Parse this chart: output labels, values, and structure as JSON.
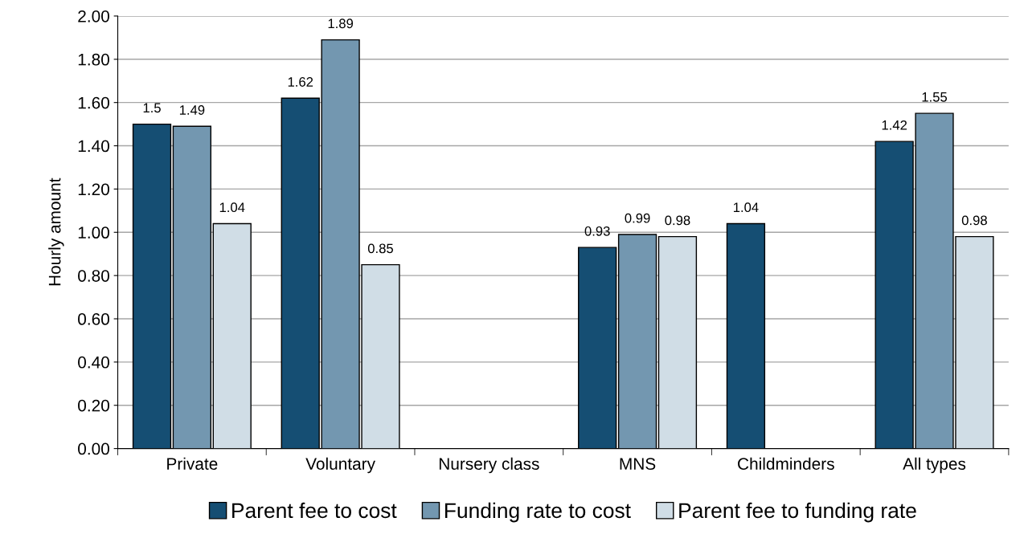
{
  "chart_data": {
    "type": "bar",
    "ylabel": "Hourly amount",
    "categories": [
      "Private",
      "Voluntary",
      "Nursery class",
      "MNS",
      "Childminders",
      "All types"
    ],
    "series": [
      {
        "name": "Parent fee to cost",
        "color": "#154e73",
        "values": [
          1.5,
          1.62,
          null,
          0.93,
          1.04,
          1.42
        ]
      },
      {
        "name": "Funding rate to cost",
        "color": "#7397b0",
        "values": [
          1.49,
          1.89,
          null,
          0.99,
          null,
          1.55
        ]
      },
      {
        "name": "Parent fee to funding rate",
        "color": "#d0dde6",
        "values": [
          1.04,
          0.85,
          null,
          0.98,
          null,
          0.98
        ]
      }
    ],
    "ylim": [
      0,
      2
    ],
    "yticks": [
      {
        "value": 0,
        "label": "0.00"
      },
      {
        "value": 0.2,
        "label": "0.20"
      },
      {
        "value": 0.4,
        "label": "0.40"
      },
      {
        "value": 0.6,
        "label": "0.60"
      },
      {
        "value": 0.8,
        "label": "0.80"
      },
      {
        "value": 1,
        "label": "1.00"
      },
      {
        "value": 1.2,
        "label": "1.20"
      },
      {
        "value": 1.4,
        "label": "1.40"
      },
      {
        "value": 1.6,
        "label": "1.60"
      },
      {
        "value": 1.8,
        "label": "1.80"
      },
      {
        "value": 2,
        "label": "2.00"
      }
    ],
    "grid": "y",
    "legend": "bottom",
    "data_labels": true
  }
}
